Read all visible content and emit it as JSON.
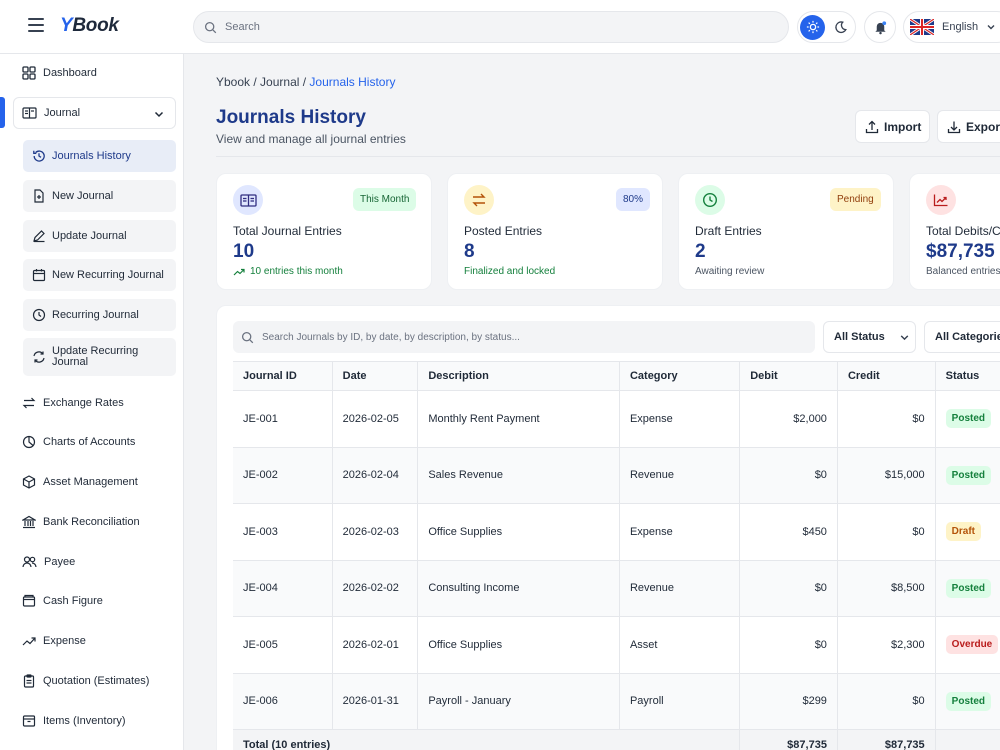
{
  "app": {
    "logo_y": "Y",
    "logo_rest": "Book"
  },
  "topbar": {
    "search_placeholder": "Search",
    "language": "English"
  },
  "sidebar": {
    "dashboard": "Dashboard",
    "journal": "Journal",
    "journal_sub": [
      "Journals History",
      "New Journal",
      "Update Journal",
      "New Recurring Journal",
      "Recurring Journal",
      "Update Recurring Journal"
    ],
    "items": [
      "Exchange Rates",
      "Charts of Accounts",
      "Asset Management",
      "Bank Reconciliation",
      "Payee",
      "Cash Figure",
      "Expense",
      "Quotation (Estimates)",
      "Items (Inventory)"
    ]
  },
  "breadcrumb": {
    "root": "Ybook",
    "section": "Journal",
    "current": "Journals History"
  },
  "header": {
    "title": "Journals History",
    "subtitle": "View and manage all journal entries",
    "import_label": "Import",
    "export_label": "Export"
  },
  "cards": [
    {
      "badge": "This Month",
      "label": "Total Journal Entries",
      "value": "10",
      "note": "10 entries this month",
      "icon": "book-open-icon",
      "color": "#4f46e5"
    },
    {
      "badge": "80%",
      "label": "Posted Entries",
      "value": "8",
      "note": "Finalized and locked",
      "icon": "transfer-icon",
      "color": "#d97706"
    },
    {
      "badge": "Pending",
      "label": "Draft Entries",
      "value": "2",
      "note": "Awaiting review",
      "icon": "clock-icon",
      "color": "#16a34a"
    },
    {
      "badge": "",
      "label": "Total Debits/Credits",
      "value": "$87,735",
      "note": "Balanced entries",
      "icon": "trend-up-icon",
      "color": "#dc2626"
    }
  ],
  "table": {
    "search_placeholder": "Search Journals by ID, by date, by description, by status...",
    "status_filter": "All Status",
    "category_filter": "All Categories",
    "columns": [
      "Journal ID",
      "Date",
      "Description",
      "Category",
      "Debit",
      "Credit",
      "Status"
    ],
    "rows": [
      {
        "id": "JE-001",
        "date": "2026-02-05",
        "description": "Monthly Rent Payment",
        "category": "Expense",
        "debit": "$2,000",
        "credit": "$0",
        "status": "Posted"
      },
      {
        "id": "JE-002",
        "date": "2026-02-04",
        "description": "Sales Revenue",
        "category": "Revenue",
        "debit": "$0",
        "credit": "$15,000",
        "status": "Posted"
      },
      {
        "id": "JE-003",
        "date": "2026-02-03",
        "description": "Office Supplies",
        "category": "Expense",
        "debit": "$450",
        "credit": "$0",
        "status": "Draft"
      },
      {
        "id": "JE-004",
        "date": "2026-02-02",
        "description": "Consulting Income",
        "category": "Revenue",
        "debit": "$0",
        "credit": "$8,500",
        "status": "Posted"
      },
      {
        "id": "JE-005",
        "date": "2026-02-01",
        "description": "Office Supplies",
        "category": "Asset",
        "debit": "$0",
        "credit": "$2,300",
        "status": "Overdue"
      },
      {
        "id": "JE-006",
        "date": "2026-01-31",
        "description": "Payroll - January",
        "category": "Payroll",
        "debit": "$299",
        "credit": "$0",
        "status": "Posted"
      }
    ],
    "footer": {
      "label": "Total (10 entries)",
      "debit": "$87,735",
      "credit": "$87,735"
    }
  },
  "status_colors": {
    "Posted": {
      "bg": "#dcfce7",
      "fg": "#15803d"
    },
    "Draft": {
      "bg": "#fef3c7",
      "fg": "#b45309"
    },
    "Overdue": {
      "bg": "#fee2e2",
      "fg": "#b91c1c"
    }
  }
}
